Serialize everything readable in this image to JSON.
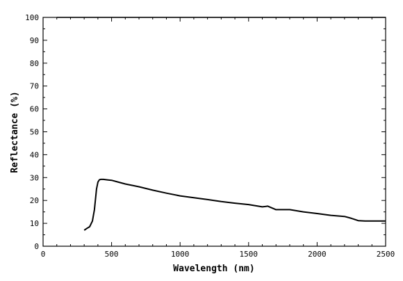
{
  "chart_data": {
    "type": "line",
    "title": "",
    "xlabel": "Wavelength (nm)",
    "ylabel": "Reflectance (%)",
    "xlim": [
      0,
      2500
    ],
    "ylim": [
      0,
      100
    ],
    "xticks": [
      0,
      500,
      1000,
      1500,
      2000,
      2500
    ],
    "yticks": [
      0,
      10,
      20,
      30,
      40,
      50,
      60,
      70,
      80,
      90,
      100
    ],
    "grid": false,
    "series": [
      {
        "name": "",
        "color": "#000000",
        "x": [
          300,
          320,
          340,
          360,
          375,
          390,
          400,
          410,
          420,
          440,
          470,
          500,
          550,
          600,
          650,
          700,
          800,
          900,
          1000,
          1100,
          1200,
          1300,
          1400,
          1500,
          1600,
          1640,
          1700,
          1800,
          1900,
          2000,
          2100,
          2200,
          2250,
          2300,
          2350,
          2400,
          2500
        ],
        "y": [
          7,
          7.8,
          8.5,
          11,
          16,
          25,
          28,
          29,
          29.2,
          29.2,
          29,
          28.8,
          28,
          27.2,
          26.6,
          26,
          24.5,
          23.2,
          22,
          21.2,
          20.4,
          19.5,
          18.8,
          18.2,
          17.2,
          17.5,
          16,
          16,
          15,
          14.3,
          13.5,
          13,
          12.2,
          11.2,
          11,
          11,
          11
        ]
      },
      {
        "name": "",
        "color": "#000000",
        "x": [
          100,
          500,
          1000,
          1500,
          2000,
          2500
        ],
        "y": [
          100,
          100,
          100,
          100,
          100,
          100
        ]
      }
    ]
  }
}
